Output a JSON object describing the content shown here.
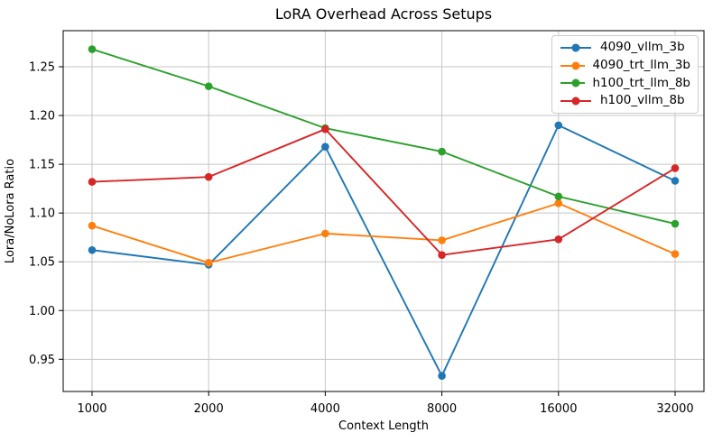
{
  "chart_data": {
    "type": "line",
    "title": "LoRA Overhead Across Setups",
    "xlabel": "Context Length",
    "ylabel": "Lora/NoLora Ratio",
    "categories": [
      1000,
      2000,
      4000,
      8000,
      16000,
      32000
    ],
    "x_tick_labels": [
      "1000",
      "2000",
      "4000",
      "8000",
      "16000",
      "32000"
    ],
    "y_ticks": [
      0.95,
      1.0,
      1.05,
      1.1,
      1.15,
      1.2,
      1.25
    ],
    "ylim": [
      0.917,
      1.287
    ],
    "grid": true,
    "legend_position": "upper right",
    "marker": "circle",
    "series": [
      {
        "name": "4090_vllm_3b",
        "color": "#1f77b4",
        "values": [
          1.062,
          1.047,
          1.168,
          0.933,
          1.19,
          1.133
        ]
      },
      {
        "name": "4090_trt_llm_3b",
        "color": "#ff7f0e",
        "values": [
          1.087,
          1.049,
          1.079,
          1.072,
          1.11,
          1.058
        ]
      },
      {
        "name": "h100_trt_llm_8b",
        "color": "#2ca02c",
        "values": [
          1.268,
          1.23,
          1.187,
          1.163,
          1.117,
          1.089
        ]
      },
      {
        "name": "h100_vllm_8b",
        "color": "#d62728",
        "values": [
          1.132,
          1.137,
          1.186,
          1.057,
          1.073,
          1.146
        ]
      }
    ],
    "styles": {
      "grid_color": "#c6c6c6",
      "spine_color": "#000000",
      "text_color": "#000000"
    }
  }
}
